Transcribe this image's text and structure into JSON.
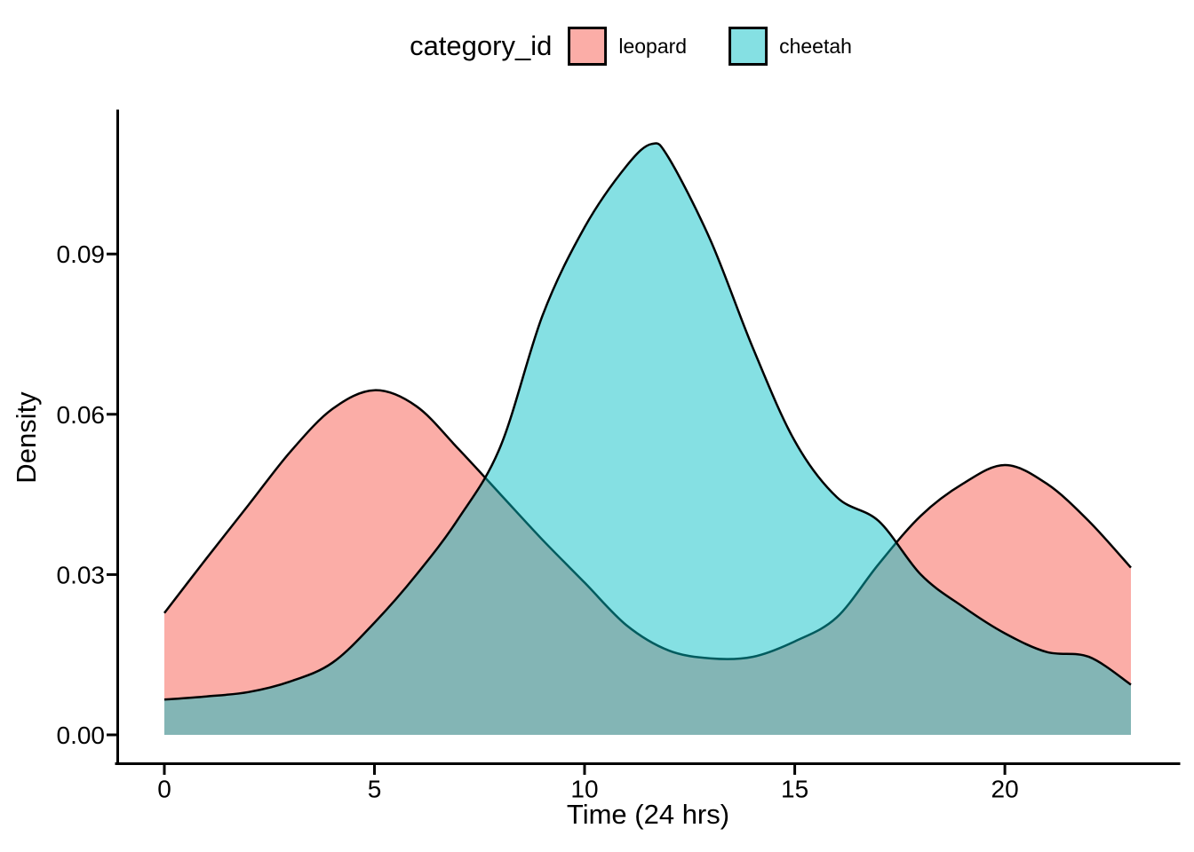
{
  "figure": {
    "background": "#ffffff",
    "text_color": "#000000",
    "axis_color": "#000000"
  },
  "chart_data": {
    "type": "area",
    "subtype": "density",
    "title": "",
    "legend_title": "category_id",
    "legend_position": "top",
    "xlabel": "Time (24 hrs)",
    "ylabel": "Density",
    "xlim": [
      0,
      23
    ],
    "ylim": [
      0,
      0.116
    ],
    "grid": false,
    "x_ticks": {
      "values": [
        0,
        5,
        10,
        15,
        20
      ],
      "labels": [
        "0",
        "5",
        "10",
        "15",
        "20"
      ]
    },
    "y_ticks": {
      "values": [
        0,
        0.03,
        0.06,
        0.09
      ],
      "labels": [
        "0.00",
        "0.03",
        "0.06",
        "0.09"
      ]
    },
    "series": [
      {
        "name": "leopard",
        "fill": "#F8766D",
        "fill_opacity": 0.6,
        "stroke": "#000000",
        "stroke_width": 2.5,
        "peaks": [
          {
            "x": 5,
            "y": 0.0645
          },
          {
            "x": 20,
            "y": 0.0505
          }
        ],
        "x": [
          0,
          1,
          2,
          3,
          4,
          5,
          6,
          7,
          8,
          9,
          10,
          11,
          12,
          13,
          14,
          15,
          16,
          17,
          18,
          19,
          20,
          21,
          22,
          23
        ],
        "y": [
          0.0228,
          0.033,
          0.043,
          0.053,
          0.061,
          0.0645,
          0.0615,
          0.0535,
          0.045,
          0.0365,
          0.0285,
          0.0205,
          0.0158,
          0.0143,
          0.0146,
          0.0175,
          0.022,
          0.032,
          0.041,
          0.047,
          0.0505,
          0.047,
          0.04,
          0.0313
        ]
      },
      {
        "name": "cheetah",
        "fill": "#00BFC4",
        "fill_opacity": 0.48,
        "stroke": "#000000",
        "stroke_width": 2.5,
        "peaks": [
          {
            "x": 11.6,
            "y": 0.1106
          }
        ],
        "x": [
          0,
          1,
          2,
          3,
          4,
          5,
          6,
          7,
          8,
          9,
          10,
          11,
          11.6,
          12,
          13,
          14,
          15,
          16,
          17,
          18,
          19,
          20,
          21,
          22,
          23
        ],
        "y": [
          0.0066,
          0.0072,
          0.008,
          0.01,
          0.0135,
          0.021,
          0.03,
          0.0405,
          0.054,
          0.0785,
          0.095,
          0.1065,
          0.1106,
          0.108,
          0.0925,
          0.0725,
          0.055,
          0.0445,
          0.04,
          0.03,
          0.024,
          0.019,
          0.0155,
          0.0146,
          0.0094
        ]
      }
    ]
  }
}
